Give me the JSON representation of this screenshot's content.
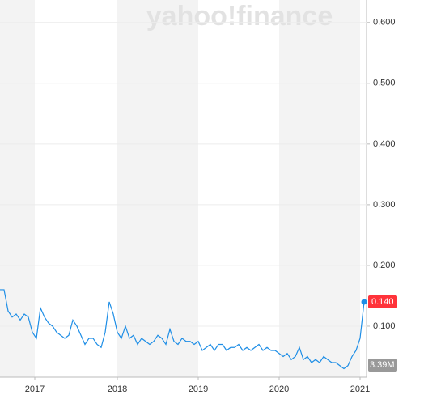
{
  "chart_data": {
    "type": "line",
    "watermark": "yahoo!finance",
    "xticks": [
      {
        "value": 8.6,
        "label": "2017"
      },
      {
        "value": 29,
        "label": "2018"
      },
      {
        "value": 49,
        "label": "2019"
      },
      {
        "value": 69,
        "label": "2020"
      },
      {
        "value": 89,
        "label": "2021"
      }
    ],
    "xlim": [
      0,
      90.6
    ],
    "ylim": [
      0.016,
      0.637
    ],
    "yticks": [
      {
        "value": 0.1,
        "label": "0.100"
      },
      {
        "value": 0.2,
        "label": "0.200"
      },
      {
        "value": 0.3,
        "label": "0.300"
      },
      {
        "value": 0.4,
        "label": "0.400"
      },
      {
        "value": 0.5,
        "label": "0.500"
      },
      {
        "value": 0.6,
        "label": "0.600"
      }
    ],
    "grid": true,
    "series": [
      {
        "color": "#1e8ee6",
        "last_label": "0.140",
        "values": [
          0.16,
          0.16,
          0.125,
          0.115,
          0.12,
          0.11,
          0.12,
          0.115,
          0.09,
          0.08,
          0.13,
          0.115,
          0.105,
          0.1,
          0.09,
          0.085,
          0.08,
          0.085,
          0.11,
          0.1,
          0.085,
          0.07,
          0.08,
          0.08,
          0.07,
          0.065,
          0.09,
          0.14,
          0.12,
          0.09,
          0.08,
          0.1,
          0.08,
          0.085,
          0.07,
          0.08,
          0.075,
          0.07,
          0.075,
          0.085,
          0.08,
          0.07,
          0.095,
          0.075,
          0.07,
          0.08,
          0.075,
          0.075,
          0.07,
          0.075,
          0.06,
          0.065,
          0.07,
          0.06,
          0.07,
          0.07,
          0.06,
          0.065,
          0.065,
          0.07,
          0.06,
          0.065,
          0.06,
          0.065,
          0.07,
          0.06,
          0.065,
          0.06,
          0.06,
          0.055,
          0.05,
          0.055,
          0.045,
          0.05,
          0.065,
          0.045,
          0.05,
          0.04,
          0.045,
          0.04,
          0.05,
          0.045,
          0.04,
          0.04,
          0.035,
          0.03,
          0.035,
          0.05,
          0.06,
          0.08,
          0.14
        ]
      }
    ],
    "volume_label": "3.39M"
  }
}
